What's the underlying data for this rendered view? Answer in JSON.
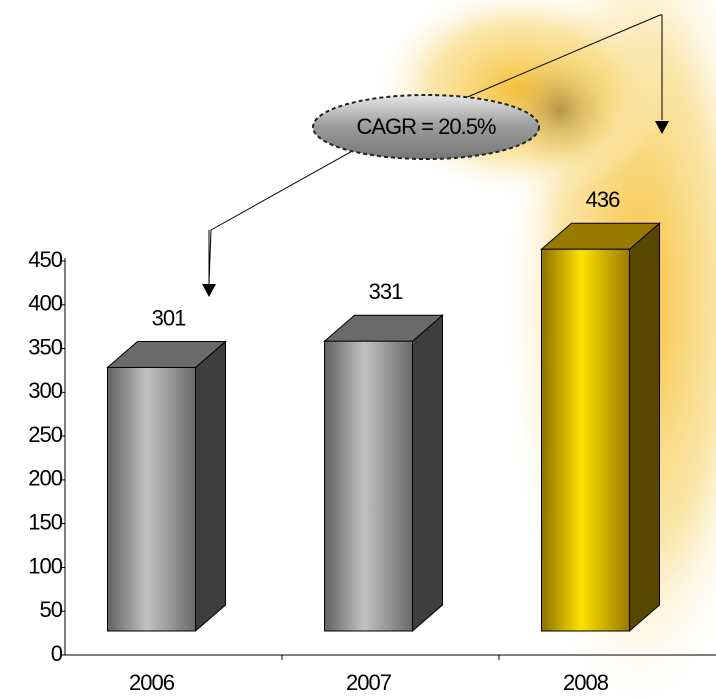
{
  "chart_data": {
    "type": "bar3d",
    "categories": [
      "2006",
      "2007",
      "2008"
    ],
    "values": [
      301,
      331,
      436
    ],
    "colors": [
      "#b0b0b0",
      "#b0b0b0",
      "#ffcc00"
    ],
    "annotation": "CAGR = 20.5%",
    "ylim": [
      0,
      450
    ],
    "yticks": [
      0,
      50,
      100,
      150,
      200,
      250,
      300,
      350,
      400,
      450
    ]
  }
}
